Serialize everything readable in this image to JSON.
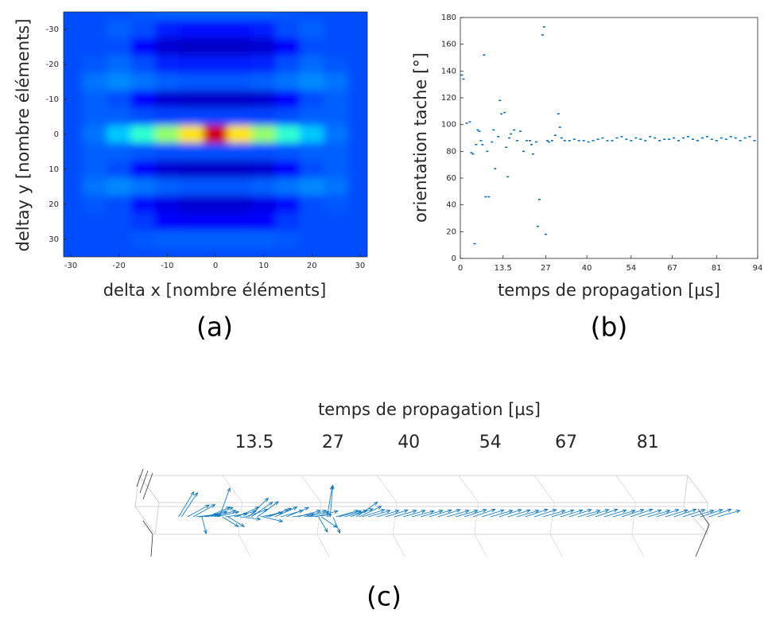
{
  "chart_data": [
    {
      "type": "heatmap",
      "colormap": "jet",
      "x": [
        -30,
        -25,
        -20,
        -15,
        -10,
        -5,
        0,
        5,
        10,
        15,
        20,
        25,
        30
      ],
      "y": [
        -35,
        -30,
        -25,
        -20,
        -15,
        -10,
        -5,
        0,
        5,
        10,
        15,
        20,
        25,
        30,
        35
      ],
      "values": [
        [
          0.2,
          0.2,
          0.2,
          0.21,
          0.22,
          0.22,
          0.22,
          0.22,
          0.22,
          0.21,
          0.2,
          0.2,
          0.2
        ],
        [
          0.2,
          0.2,
          0.22,
          0.2,
          0.15,
          0.14,
          0.14,
          0.14,
          0.15,
          0.2,
          0.22,
          0.2,
          0.2
        ],
        [
          0.2,
          0.2,
          0.2,
          0.13,
          0.08,
          0.07,
          0.07,
          0.07,
          0.08,
          0.13,
          0.2,
          0.2,
          0.2
        ],
        [
          0.2,
          0.21,
          0.23,
          0.2,
          0.16,
          0.15,
          0.15,
          0.15,
          0.16,
          0.2,
          0.23,
          0.21,
          0.2
        ],
        [
          0.2,
          0.24,
          0.26,
          0.24,
          0.22,
          0.21,
          0.21,
          0.21,
          0.22,
          0.24,
          0.26,
          0.24,
          0.2
        ],
        [
          0.2,
          0.22,
          0.2,
          0.13,
          0.08,
          0.07,
          0.07,
          0.07,
          0.08,
          0.13,
          0.2,
          0.22,
          0.2
        ],
        [
          0.2,
          0.22,
          0.22,
          0.2,
          0.19,
          0.19,
          0.19,
          0.19,
          0.19,
          0.2,
          0.22,
          0.22,
          0.2
        ],
        [
          0.2,
          0.24,
          0.32,
          0.42,
          0.52,
          0.65,
          0.92,
          0.65,
          0.52,
          0.42,
          0.32,
          0.24,
          0.2
        ],
        [
          0.2,
          0.22,
          0.22,
          0.21,
          0.2,
          0.2,
          0.2,
          0.2,
          0.2,
          0.21,
          0.22,
          0.22,
          0.2
        ],
        [
          0.2,
          0.22,
          0.2,
          0.13,
          0.08,
          0.07,
          0.07,
          0.07,
          0.08,
          0.13,
          0.2,
          0.22,
          0.2
        ],
        [
          0.2,
          0.24,
          0.26,
          0.24,
          0.22,
          0.21,
          0.21,
          0.21,
          0.22,
          0.24,
          0.26,
          0.24,
          0.2
        ],
        [
          0.2,
          0.21,
          0.2,
          0.14,
          0.1,
          0.08,
          0.08,
          0.08,
          0.1,
          0.14,
          0.2,
          0.21,
          0.2
        ],
        [
          0.2,
          0.2,
          0.2,
          0.18,
          0.13,
          0.12,
          0.12,
          0.12,
          0.13,
          0.18,
          0.2,
          0.2,
          0.2
        ],
        [
          0.2,
          0.2,
          0.2,
          0.21,
          0.22,
          0.22,
          0.22,
          0.22,
          0.22,
          0.21,
          0.2,
          0.2,
          0.2
        ],
        [
          0.2,
          0.2,
          0.2,
          0.2,
          0.2,
          0.2,
          0.2,
          0.2,
          0.2,
          0.2,
          0.2,
          0.2,
          0.2
        ]
      ],
      "xlim": [
        -31.5,
        31.5
      ],
      "ylim": [
        -35,
        35
      ],
      "y_reversed": true,
      "xticks": [
        -30,
        -20,
        -10,
        0,
        10,
        20,
        30
      ],
      "yticks": [
        -30,
        -20,
        -10,
        0,
        10,
        20,
        30
      ],
      "xlabel": "delta x [nombre éléments]",
      "ylabel": "deltay y [nombre éléments]",
      "panel_label": "(a)"
    },
    {
      "type": "scatter",
      "color": "#0072bd",
      "x": [
        0.5,
        1,
        2,
        3,
        3.5,
        4,
        4.5,
        5,
        5.5,
        6,
        6.5,
        7,
        7.5,
        8,
        8.5,
        9,
        10,
        10.5,
        11,
        12,
        12.5,
        13,
        14,
        14.5,
        15,
        15.5,
        16,
        17,
        18,
        19,
        20,
        21,
        22,
        22.5,
        23,
        24,
        24.5,
        25,
        26,
        26.5,
        27,
        27.5,
        28,
        29,
        30,
        31,
        31.5,
        32,
        33,
        34.5,
        36,
        37.5,
        39,
        40.5,
        42,
        43.5,
        45,
        46.5,
        48,
        49.5,
        51,
        52.5,
        54,
        55.5,
        57,
        58.5,
        60,
        61.5,
        63,
        64.5,
        66,
        67.5,
        69,
        70.5,
        72,
        73.5,
        75,
        76.5,
        78,
        79.5,
        81,
        82.5,
        84,
        85.5,
        87,
        88.5,
        90,
        91.5,
        93
      ],
      "values": [
        137,
        134,
        101,
        102,
        79,
        78,
        11,
        85,
        96,
        95,
        88,
        85,
        152,
        46,
        80,
        46,
        87,
        96,
        67,
        91,
        118,
        108,
        109,
        83,
        61,
        90,
        93,
        96,
        88,
        95,
        80,
        88,
        88,
        85,
        78,
        87,
        24,
        44,
        167,
        173,
        18,
        88,
        87,
        88,
        92,
        108,
        98,
        90,
        88,
        88,
        89,
        88,
        88,
        87,
        88,
        89,
        90,
        88,
        88,
        90,
        91,
        89,
        88,
        90,
        89,
        88,
        91,
        90,
        88,
        89,
        89,
        90,
        88,
        90,
        91,
        89,
        88,
        90,
        91,
        89,
        88,
        90,
        89,
        91,
        90,
        88,
        90,
        91,
        88
      ],
      "xlim": [
        0,
        94
      ],
      "ylim": [
        0,
        180
      ],
      "xticks": [
        0,
        13.5,
        27,
        40,
        54,
        67,
        81,
        94
      ],
      "yticks": [
        0,
        20,
        40,
        60,
        80,
        100,
        120,
        140,
        160,
        180
      ],
      "xlabel": "temps de propagation [µs]",
      "ylabel": "orientation tache [°]",
      "panel_label": "(b)"
    },
    {
      "type": "quiver3d",
      "color": "#0072bd",
      "source": 1,
      "xlim": [
        0,
        94
      ],
      "xticks": [
        13.5,
        27,
        40,
        54,
        67,
        81
      ],
      "xlabel": "temps de propagation [µs]",
      "panel_label": "(c)"
    }
  ]
}
